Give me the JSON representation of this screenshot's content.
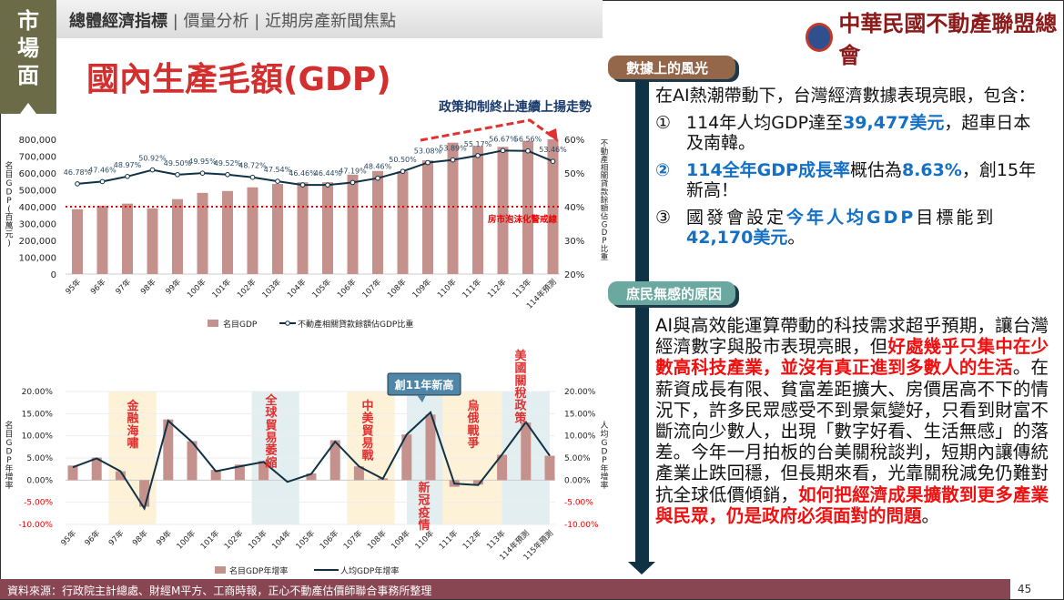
{
  "side_label": "市場面",
  "nav": {
    "active": "總體經濟指標",
    "items": [
      "價量分析",
      "近期房產新聞焦點"
    ],
    "sep": "|"
  },
  "logo_text": "中華民國不動產聯盟總會",
  "title": "國內生產毛額(GDP)",
  "chart_data": [
    {
      "type": "bar+line",
      "categories": [
        "95年",
        "96年",
        "97年",
        "98年",
        "99年",
        "100年",
        "101年",
        "102年",
        "103年",
        "104年",
        "105年",
        "106年",
        "107年",
        "108年",
        "109年",
        "110年",
        "111年",
        "112年",
        "113年",
        "114年預測"
      ],
      "series": [
        {
          "name": "名目GDP",
          "axis": "left",
          "type": "bar",
          "color": "#c4918d",
          "values": [
            385000,
            405000,
            418000,
            390000,
            445000,
            482000,
            493000,
            515000,
            535000,
            545000,
            545000,
            590000,
            612000,
            610000,
            675000,
            780000,
            760000,
            755000,
            790000,
            800000
          ]
        },
        {
          "name": "不動產相關貸款餘額佔GDP比重",
          "axis": "right",
          "type": "line",
          "color": "#0f3244",
          "values": [
            46.78,
            47.46,
            48.97,
            50.92,
            49.5,
            49.95,
            49.52,
            48.72,
            47.54,
            46.46,
            46.44,
            47.19,
            48.46,
            50.5,
            53.08,
            53.89,
            55.17,
            56.67,
            56.56,
            53.46
          ],
          "labels": [
            "46.78%",
            "47.46%",
            "48.97%",
            "50.92%",
            "49.50%",
            "49.95%",
            "49.52%",
            "48.72%",
            "47.54%",
            "46.46%",
            "46.44%",
            "47.19%",
            "48.46%",
            "50.50%",
            "53.08%",
            "53.89%",
            "55.17%",
            "56.67%",
            "56.56%",
            "53.46%"
          ]
        }
      ],
      "ylabel_left": "名目GDP(百萬元)",
      "ylabel_right": "不動產相關貸款餘額佔GDP比重",
      "ylim_left": [
        0,
        800000
      ],
      "ylim_right": [
        20,
        60
      ],
      "yticks_left": [
        "800,000",
        "700,000",
        "600,000",
        "500,000",
        "400,000",
        "300,000",
        "200,000",
        "100,000",
        "0"
      ],
      "yticks_right": [
        "60%",
        "50%",
        "40%",
        "30%",
        "20%"
      ],
      "threshold": {
        "value": 40,
        "label": "房市泡沫化警戒線",
        "color": "#e00000"
      },
      "annotation": "政策抑制終止連續上揚走勢",
      "legend": "bottom"
    },
    {
      "type": "bar+line",
      "categories": [
        "95年",
        "96年",
        "97年",
        "98年",
        "99年",
        "100年",
        "101年",
        "102年",
        "103年",
        "104年",
        "105年",
        "106年",
        "107年",
        "108年",
        "109年",
        "110年",
        "111年",
        "112年",
        "113年",
        "114年預測",
        "115年預測"
      ],
      "series": [
        {
          "name": "名目GDP年增率",
          "type": "bar",
          "color": "#c4918d",
          "values": [
            3.3,
            5.1,
            2.0,
            -6.0,
            13.7,
            8.8,
            2.3,
            3.5,
            4.3,
            0,
            1.5,
            9.0,
            3.1,
            0.4,
            10.3,
            14.8,
            -1.5,
            -1.0,
            5.7,
            13.0,
            5.5
          ]
        },
        {
          "name": "人均GDP年增率",
          "type": "line",
          "color": "#0f3244",
          "values": [
            2.9,
            4.9,
            2.0,
            -6.4,
            13.4,
            8.6,
            2.0,
            3.1,
            4.1,
            -0.4,
            1.4,
            8.7,
            3.1,
            0.3,
            10.3,
            15.3,
            -0.8,
            -1.1,
            5.8,
            13.1,
            5.5
          ]
        }
      ],
      "ylabel_left": "名目GDP年增率",
      "ylabel_right": "人均GDP年增率",
      "ylim": [
        -10,
        20
      ],
      "yticks": [
        "20.00%",
        "15.00%",
        "10.00%",
        "5.00%",
        "0.00%",
        "-5.00%",
        "-10.00%"
      ],
      "events": [
        {
          "label": "金融海嘯",
          "from": 2,
          "to": 3,
          "color": "#fdf1d8"
        },
        {
          "label": "全球貿易萎縮",
          "from": 8,
          "to": 9,
          "color": "#e3eef0"
        },
        {
          "label": "中美貿易戰",
          "from": 12,
          "to": 13,
          "color": "#fdf1d8"
        },
        {
          "label": "新冠疫情",
          "from": 14.5,
          "to": 16,
          "color": "#e3eef0"
        },
        {
          "label": "烏俄戰爭",
          "from": 16,
          "to": 18.5,
          "color": "#fdf1d8"
        },
        {
          "label": "美國關稅政策",
          "from": 18.5,
          "to": 19.5,
          "color": "#e3eef0"
        }
      ],
      "callout": "創11年新高",
      "legend": "bottom"
    }
  ],
  "panel": {
    "tab1": "數據上的風光",
    "intro": "在AI熱潮帶動下，台灣經濟數據表現亮眼，包含：",
    "items": [
      {
        "num": "①",
        "a": "114年人均GDP達至",
        "b": "39,477美元",
        "c": "，超車日本及南韓。"
      },
      {
        "num": "②",
        "b0": "114全年GDP成長率",
        "a": "概估為",
        "b": "8.63%",
        "c": "，創15年新高！"
      },
      {
        "num": "③",
        "a": "國發會設定",
        "b0": "今年人均GDP",
        "c0": "目標能到",
        "b": "42,170美元",
        "c": "。"
      }
    ],
    "tab2": "庶民無感的原因",
    "p1": "AI與高效能運算帶動的科技需求超乎預期，讓台灣經濟數字與股市表現亮眼，但",
    "r1": "好處幾乎只集中在少數高科技產業，並沒有真正進到多數人的生活",
    "p2": "。在薪資成長有限、貧富差距擴大、房價居高不下的情況下，許多民眾感受不到景氣變好，只看到財富不斷流向少數人，出現「數字好看、生活無感」的落差。今年一月拍板的台美關稅談判，短期內讓傳統產業止跌回穩，但長期來看，光靠關稅減免仍難對抗全球低價傾銷，",
    "r2": "如何把經濟成果擴散到更多產業與民眾，仍是政府必須面對的問題",
    "p3": "。"
  },
  "footer": "資料來源：行政院主計總處、財經M平方、工商時報，正心不動產估價師聯合事務所整理",
  "page_number": "45"
}
